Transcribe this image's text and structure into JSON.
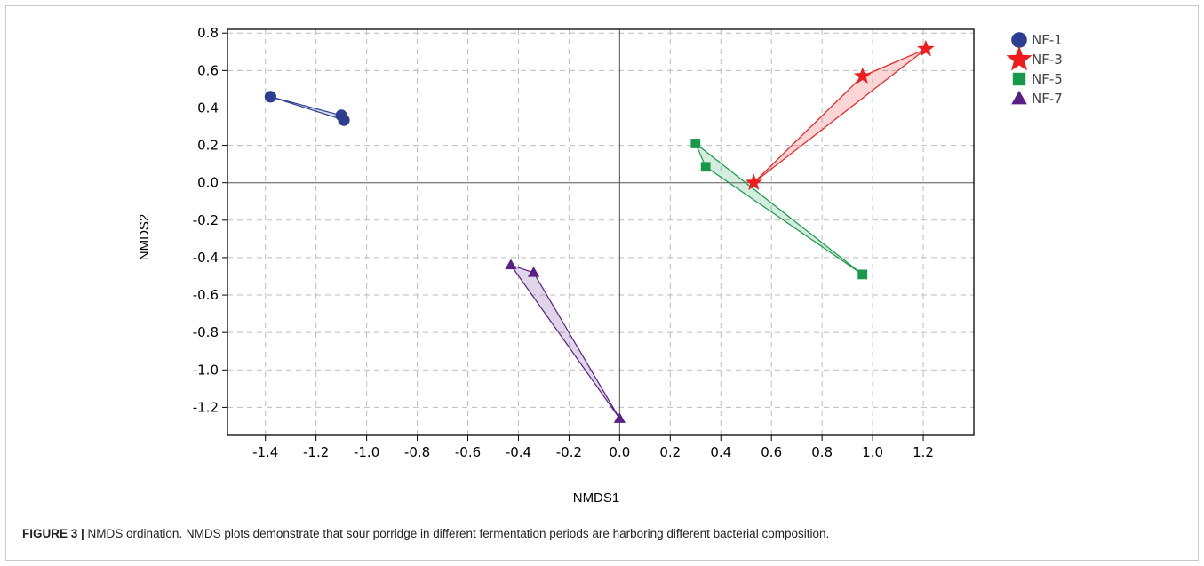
{
  "chart_data": {
    "type": "scatter",
    "xlabel": "NMDS1",
    "ylabel": "NMDS2",
    "xlim": [
      -1.55,
      1.4
    ],
    "ylim": [
      -1.35,
      0.82
    ],
    "xticks": [
      -1.4,
      -1.2,
      -1.0,
      -0.8,
      -0.6,
      -0.4,
      -0.2,
      0.0,
      0.2,
      0.4,
      0.6,
      0.8,
      1.0,
      1.2
    ],
    "yticks": [
      0.8,
      0.6,
      0.4,
      0.2,
      0.0,
      -0.2,
      -0.4,
      -0.6,
      -0.8,
      -1.0,
      -1.2
    ],
    "grid": true,
    "legend_position": "top-right",
    "series": [
      {
        "name": "NF-1",
        "marker": "circle",
        "color": "#2c3e91",
        "points": [
          [
            -1.38,
            0.46
          ],
          [
            -1.1,
            0.36
          ],
          [
            -1.09,
            0.335
          ]
        ]
      },
      {
        "name": "NF-3",
        "marker": "star",
        "color": "#ee1c1c",
        "points": [
          [
            1.21,
            0.715
          ],
          [
            0.96,
            0.57
          ],
          [
            0.53,
            0.0
          ]
        ]
      },
      {
        "name": "NF-5",
        "marker": "square",
        "color": "#169a4a",
        "points": [
          [
            0.3,
            0.21
          ],
          [
            0.34,
            0.085
          ],
          [
            0.96,
            -0.49
          ]
        ]
      },
      {
        "name": "NF-7",
        "marker": "triangle",
        "color": "#5b1e86",
        "points": [
          [
            -0.43,
            -0.44
          ],
          [
            -0.34,
            -0.48
          ],
          [
            0.0,
            -1.26
          ]
        ]
      }
    ]
  },
  "caption": {
    "label": "FIGURE 3 |",
    "text": " NMDS ordination. NMDS plots demonstrate that sour porridge in different fermentation periods are harboring different bacterial composition."
  }
}
